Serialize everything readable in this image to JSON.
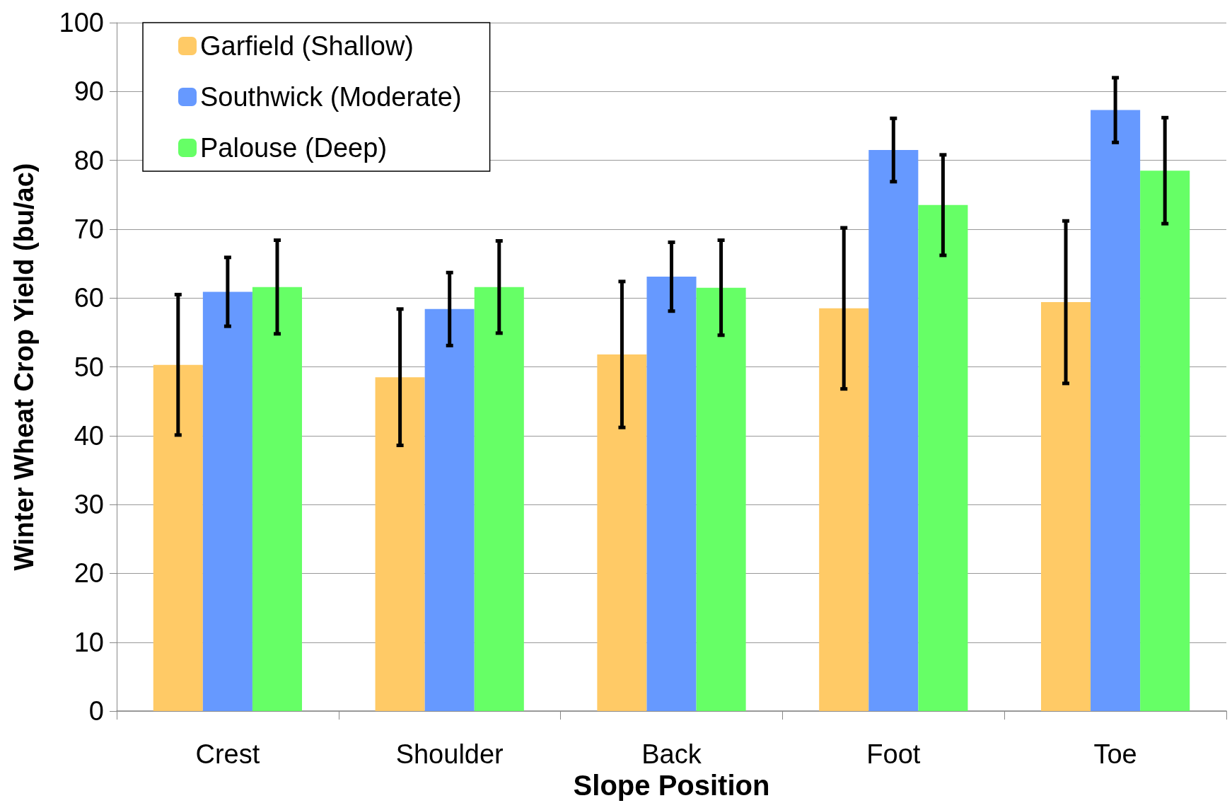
{
  "chart_data": {
    "type": "bar",
    "xlabel": "Slope Position",
    "ylabel": "Winter Wheat Crop Yield (bu/ac)",
    "categories": [
      "Crest",
      "Shoulder",
      "Back",
      "Foot",
      "Toe"
    ],
    "series": [
      {
        "name": "Garfield (Shallow)",
        "color": "#ffca66",
        "values": [
          50.3,
          48.5,
          51.8,
          58.5,
          59.4
        ],
        "errors": [
          10.2,
          9.9,
          10.6,
          11.7,
          11.8
        ]
      },
      {
        "name": "Southwick (Moderate)",
        "color": "#6699ff",
        "values": [
          60.9,
          58.4,
          63.1,
          81.5,
          87.3
        ],
        "errors": [
          5.0,
          5.3,
          5.0,
          4.6,
          4.7
        ]
      },
      {
        "name": "Palouse (Deep)",
        "color": "#66ff66",
        "values": [
          61.6,
          61.6,
          61.5,
          73.5,
          78.5
        ],
        "errors": [
          6.8,
          6.7,
          6.9,
          7.3,
          7.7
        ]
      }
    ],
    "ylim": [
      0,
      100
    ],
    "yticks": [
      0,
      10,
      20,
      30,
      40,
      50,
      60,
      70,
      80,
      90,
      100
    ],
    "grid": "y",
    "legend": "top left"
  }
}
